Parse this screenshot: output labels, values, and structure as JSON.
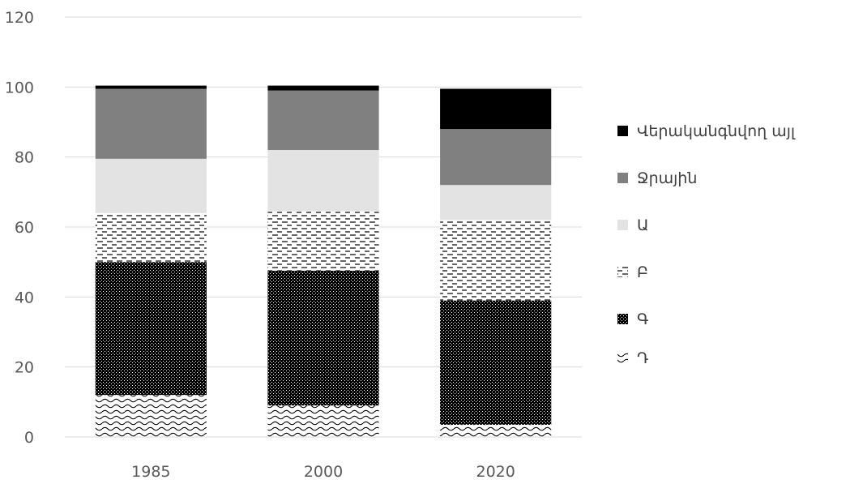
{
  "chart_data": {
    "type": "bar",
    "stacked": true,
    "categories": [
      "1985",
      "2000",
      "2020"
    ],
    "ylim": [
      0,
      120
    ],
    "yticks": [
      0,
      20,
      40,
      60,
      80,
      100,
      120
    ],
    "grid": true,
    "legend_position": "right",
    "series": [
      {
        "name": "Դ",
        "pattern": "wave",
        "values": [
          12,
          9,
          3.5
        ]
      },
      {
        "name": "Գ",
        "pattern": "dense-dots",
        "values": [
          38,
          38.5,
          35.5
        ]
      },
      {
        "name": "Բ",
        "pattern": "dashes",
        "values": [
          14,
          17,
          23
        ]
      },
      {
        "name": "Ա",
        "color": "#e3e3e3",
        "values": [
          15.5,
          17.5,
          10
        ]
      },
      {
        "name": "Ջրային",
        "color": "#808080",
        "values": [
          20,
          17,
          16
        ]
      },
      {
        "name": "Վերականգնվող այլ",
        "color": "#000000",
        "values": [
          0.9,
          1.4,
          11.5
        ]
      }
    ]
  }
}
